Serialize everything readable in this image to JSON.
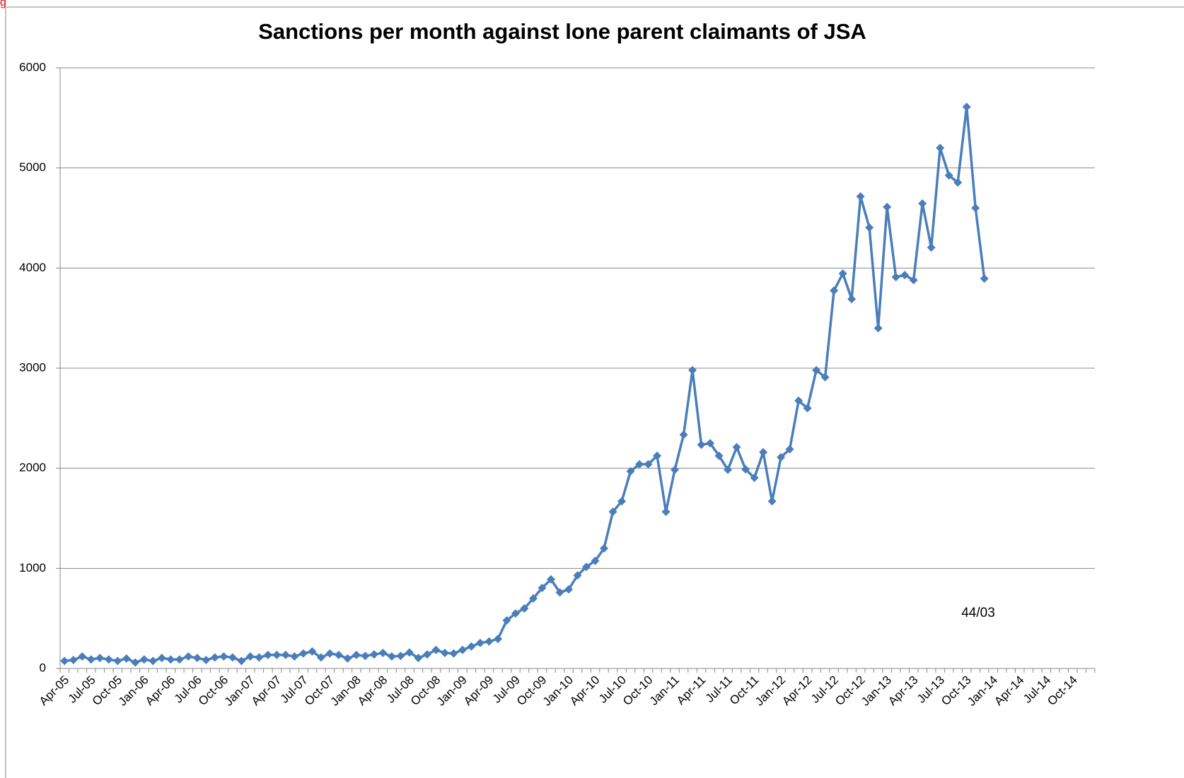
{
  "chart_data": {
    "type": "line",
    "title": "Sanctions per month against lone parent claimants of JSA",
    "corner_mark": "g",
    "annotation": "44/03",
    "color": "#4a7ebb",
    "grid": true,
    "ylim": [
      0,
      6000
    ],
    "yticks": [
      0,
      1000,
      2000,
      3000,
      4000,
      5000,
      6000
    ],
    "categories": [
      "Apr-05",
      null,
      null,
      "Jul-05",
      null,
      null,
      "Oct-05",
      null,
      null,
      "Jan-06",
      null,
      null,
      "Apr-06",
      null,
      null,
      "Jul-06",
      null,
      null,
      "Oct-06",
      null,
      null,
      "Jan-07",
      null,
      null,
      "Apr-07",
      null,
      null,
      "Jul-07",
      null,
      null,
      "Oct-07",
      null,
      null,
      "Jan-08",
      null,
      null,
      "Apr-08",
      null,
      null,
      "Jul-08",
      null,
      null,
      "Oct-08",
      null,
      null,
      "Jan-09",
      null,
      null,
      "Apr-09",
      null,
      null,
      "Jul-09",
      null,
      null,
      "Oct-09",
      null,
      null,
      "Jan-10",
      null,
      null,
      "Apr-10",
      null,
      null,
      "Jul-10",
      null,
      null,
      "Oct-10",
      null,
      null,
      "Jan-11",
      null,
      null,
      "Apr-11",
      null,
      null,
      "Jul-11",
      null,
      null,
      "Oct-11",
      null,
      null,
      "Jan-12",
      null,
      null,
      "Apr-12",
      null,
      null,
      "Jul-12",
      null,
      null,
      "Oct-12",
      null,
      null,
      "Jan-13",
      null,
      null,
      "Apr-13",
      null,
      null,
      "Jul-13",
      null,
      null,
      "Oct-13",
      null,
      null,
      "Jan-14",
      null,
      null,
      "Apr-14",
      null,
      null,
      "Jul-14",
      null,
      null,
      "Oct-14",
      null,
      null
    ],
    "values": [
      75,
      85,
      120,
      90,
      105,
      90,
      75,
      100,
      60,
      90,
      75,
      105,
      90,
      90,
      120,
      105,
      85,
      110,
      120,
      110,
      75,
      120,
      110,
      135,
      135,
      135,
      120,
      150,
      170,
      110,
      150,
      135,
      100,
      135,
      125,
      140,
      155,
      120,
      125,
      160,
      105,
      140,
      185,
      155,
      150,
      185,
      220,
      255,
      270,
      295,
      480,
      550,
      600,
      700,
      805,
      890,
      760,
      790,
      930,
      1015,
      1075,
      1200,
      1565,
      1670,
      1970,
      2040,
      2040,
      2125,
      1565,
      1985,
      2335,
      2980,
      2235,
      2250,
      2125,
      1985,
      2210,
      1990,
      1905,
      2160,
      1670,
      2110,
      2190,
      2675,
      2600,
      2980,
      2910,
      3775,
      3945,
      3690,
      4715,
      4405,
      3400,
      4610,
      3910,
      3930,
      3880,
      4645,
      4205,
      5200,
      4925,
      4855,
      5610,
      4600,
      3895,
      null,
      null,
      null,
      null,
      null,
      null,
      null,
      null,
      null,
      null,
      null,
      null
    ]
  }
}
